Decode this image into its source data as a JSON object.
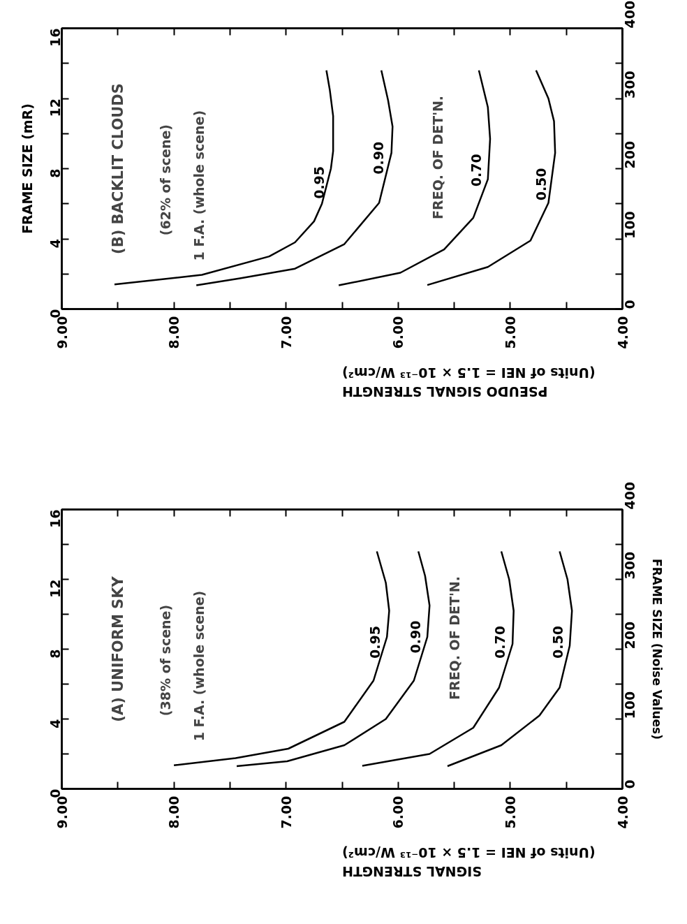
{
  "chart_data": [
    {
      "type": "line",
      "title": "(B) BACKLIT CLOUDS",
      "subtitle": "(62% of scene)",
      "annotations": [
        "1 F.A. (whole scene)",
        "FREQ. OF DET'N."
      ],
      "xlabel": "PSEUDO SIGNAL STRENGTH\n(Units of NEI = 1.5 × 10⁻¹³ W/cm²)",
      "ylabel": "FRAME SIZE (mR)",
      "xlim": [
        9,
        4
      ],
      "xticks": [
        {
          "value": 9,
          "label": "9.00"
        },
        {
          "value": 8.5,
          "label": null
        },
        {
          "value": 8,
          "label": "8.00"
        },
        {
          "value": 7.5,
          "label": null
        },
        {
          "value": 7,
          "label": "7.00"
        },
        {
          "value": 6.5,
          "label": null
        },
        {
          "value": 6,
          "label": "6.00"
        },
        {
          "value": 5.5,
          "label": null
        },
        {
          "value": 5,
          "label": "5.00"
        },
        {
          "value": 4.5,
          "label": null
        },
        {
          "value": 4,
          "label": "4.00"
        }
      ],
      "ylim": [
        0,
        16
      ],
      "yticks": [
        0,
        {
          "value": 2,
          "label": null
        },
        4,
        {
          "value": 6,
          "label": null
        },
        8,
        {
          "value": 10,
          "label": null
        },
        12,
        {
          "value": 14,
          "label": null
        },
        16
      ],
      "y2lim": [
        0,
        400
      ],
      "y2ticks": [
        0,
        {
          "value": 50,
          "label": null
        },
        100,
        {
          "value": 150,
          "label": null
        },
        200,
        {
          "value": 250,
          "label": null
        },
        300,
        {
          "value": 350,
          "label": null
        },
        400
      ],
      "grid": false,
      "legend": false,
      "marker": "none",
      "line_style": "solid",
      "series": [
        {
          "name": "0.95",
          "color": "#000000",
          "x": [
            8.53,
            7.75,
            7.15,
            6.92,
            6.75,
            6.68,
            6.6,
            6.58,
            6.58,
            6.61,
            6.64
          ],
          "values": [
            1.4,
            1.95,
            3.0,
            3.8,
            5.0,
            6.0,
            8.0,
            9.0,
            11.0,
            12.5,
            13.6
          ]
        },
        {
          "name": "0.90",
          "color": "#000000",
          "x": [
            7.8,
            7.41,
            6.92,
            6.48,
            6.17,
            6.06,
            6.05,
            6.09,
            6.15
          ],
          "values": [
            1.35,
            1.75,
            2.3,
            3.7,
            6.05,
            8.9,
            10.4,
            11.9,
            13.6
          ]
        },
        {
          "name": "0.70",
          "color": "#000000",
          "x": [
            6.53,
            5.98,
            5.59,
            5.33,
            5.2,
            5.18,
            5.2,
            5.28
          ],
          "values": [
            1.35,
            2.07,
            3.4,
            5.2,
            7.4,
            9.7,
            11.5,
            13.6
          ]
        },
        {
          "name": "0.50",
          "color": "#000000",
          "x": [
            5.74,
            5.2,
            4.82,
            4.66,
            4.6,
            4.61,
            4.66,
            4.77
          ],
          "values": [
            1.37,
            2.4,
            3.9,
            6.05,
            8.9,
            10.7,
            12.0,
            13.6
          ]
        }
      ]
    },
    {
      "type": "line",
      "title": "(A) UNIFORM SKY",
      "subtitle": "(38% of scene)",
      "annotations": [
        "1 F.A. (whole scene)",
        "FREQ. OF DET'N."
      ],
      "xlabel": "SIGNAL STRENGTH\n(Units of NEI = 1.5 × 10⁻¹³ W/cm²)",
      "y2label": "FRAME SIZE (Noise Values)",
      "xlim": [
        9,
        4
      ],
      "xticks": [
        {
          "value": 9,
          "label": "9.00"
        },
        {
          "value": 8.5,
          "label": null
        },
        {
          "value": 8,
          "label": "8.00"
        },
        {
          "value": 7.5,
          "label": null
        },
        {
          "value": 7,
          "label": "7.00"
        },
        {
          "value": 6.5,
          "label": null
        },
        {
          "value": 6,
          "label": "6.00"
        },
        {
          "value": 5.5,
          "label": null
        },
        {
          "value": 5,
          "label": "5.00"
        },
        {
          "value": 4.5,
          "label": null
        },
        {
          "value": 4,
          "label": "4.00"
        }
      ],
      "ylim": [
        0,
        16
      ],
      "yticks": [
        0,
        {
          "value": 2,
          "label": null
        },
        4,
        {
          "value": 6,
          "label": null
        },
        8,
        {
          "value": 10,
          "label": null
        },
        12,
        {
          "value": 14,
          "label": null
        },
        16
      ],
      "y2lim": [
        0,
        400
      ],
      "y2ticks": [
        0,
        {
          "value": 50,
          "label": null
        },
        100,
        {
          "value": 150,
          "label": null
        },
        200,
        {
          "value": 250,
          "label": null
        },
        300,
        {
          "value": 350,
          "label": null
        },
        400
      ],
      "grid": false,
      "legend": false,
      "marker": "none",
      "line_style": "solid",
      "series": [
        {
          "name": "0.95",
          "color": "#000000",
          "x": [
            8.0,
            7.45,
            6.98,
            6.48,
            6.22,
            6.1,
            6.08,
            6.11,
            6.19
          ],
          "values": [
            1.35,
            1.76,
            2.3,
            3.84,
            6.2,
            8.7,
            10.2,
            11.8,
            13.6
          ]
        },
        {
          "name": "0.90",
          "color": "#000000",
          "x": [
            7.44,
            6.99,
            6.48,
            6.11,
            5.86,
            5.74,
            5.72,
            5.76,
            5.82
          ],
          "values": [
            1.3,
            1.58,
            2.5,
            4.0,
            6.2,
            8.7,
            10.5,
            12.2,
            13.6
          ]
        },
        {
          "name": "0.70",
          "color": "#000000",
          "x": [
            6.32,
            5.72,
            5.33,
            5.1,
            4.98,
            4.97,
            5.01,
            5.08
          ],
          "values": [
            1.32,
            2.0,
            3.5,
            5.8,
            8.3,
            10.2,
            12.0,
            13.6
          ]
        },
        {
          "name": "0.50",
          "color": "#000000",
          "x": [
            5.56,
            5.08,
            4.74,
            4.56,
            4.47,
            4.45,
            4.49,
            4.56
          ],
          "values": [
            1.3,
            2.5,
            4.2,
            5.8,
            8.2,
            10.2,
            12.0,
            13.6
          ]
        }
      ]
    }
  ]
}
